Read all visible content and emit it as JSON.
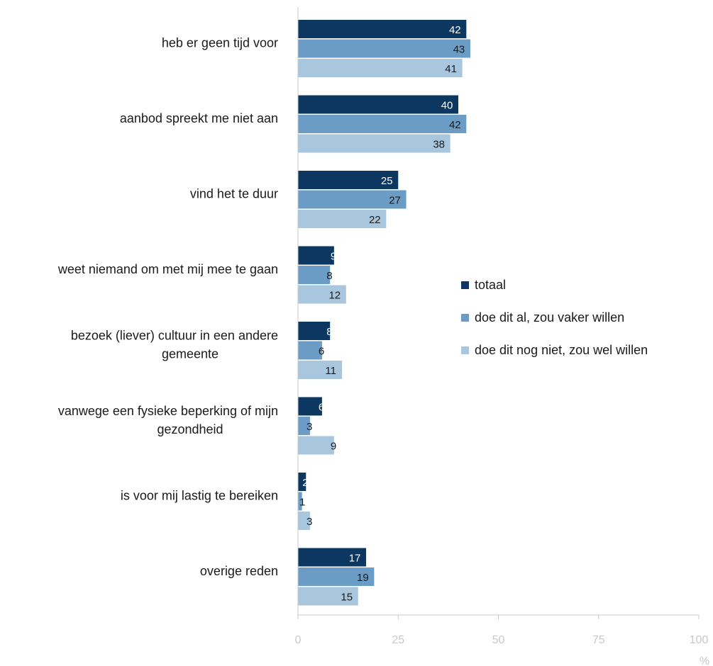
{
  "chart_data": {
    "type": "bar",
    "orientation": "horizontal",
    "categories": [
      [
        "heb er geen tijd voor"
      ],
      [
        "aanbod spreekt me niet aan"
      ],
      [
        "vind het te duur"
      ],
      [
        "weet niemand om met mij mee te gaan"
      ],
      [
        "bezoek (liever) cultuur in een andere",
        "gemeente"
      ],
      [
        "vanwege een fysieke beperking of mijn",
        "gezondheid"
      ],
      [
        "is voor mij lastig te bereiken"
      ],
      [
        "overige reden"
      ]
    ],
    "series": [
      {
        "name": "totaal",
        "color": "#0b3760",
        "values": [
          42,
          40,
          25,
          9,
          8,
          6,
          2,
          17
        ]
      },
      {
        "name": "doe dit al, zou vaker willen",
        "color": "#6a9cc6",
        "values": [
          43,
          42,
          27,
          8,
          6,
          3,
          1,
          19
        ]
      },
      {
        "name": "doe dit nog niet, zou wel willen",
        "color": "#a8c6de",
        "values": [
          41,
          38,
          22,
          12,
          11,
          9,
          3,
          15
        ]
      }
    ],
    "xlim": [
      0,
      100
    ],
    "xticks": [
      0,
      25,
      50,
      75,
      100
    ],
    "xunit": "%",
    "legend_position": "right",
    "grid": false
  }
}
